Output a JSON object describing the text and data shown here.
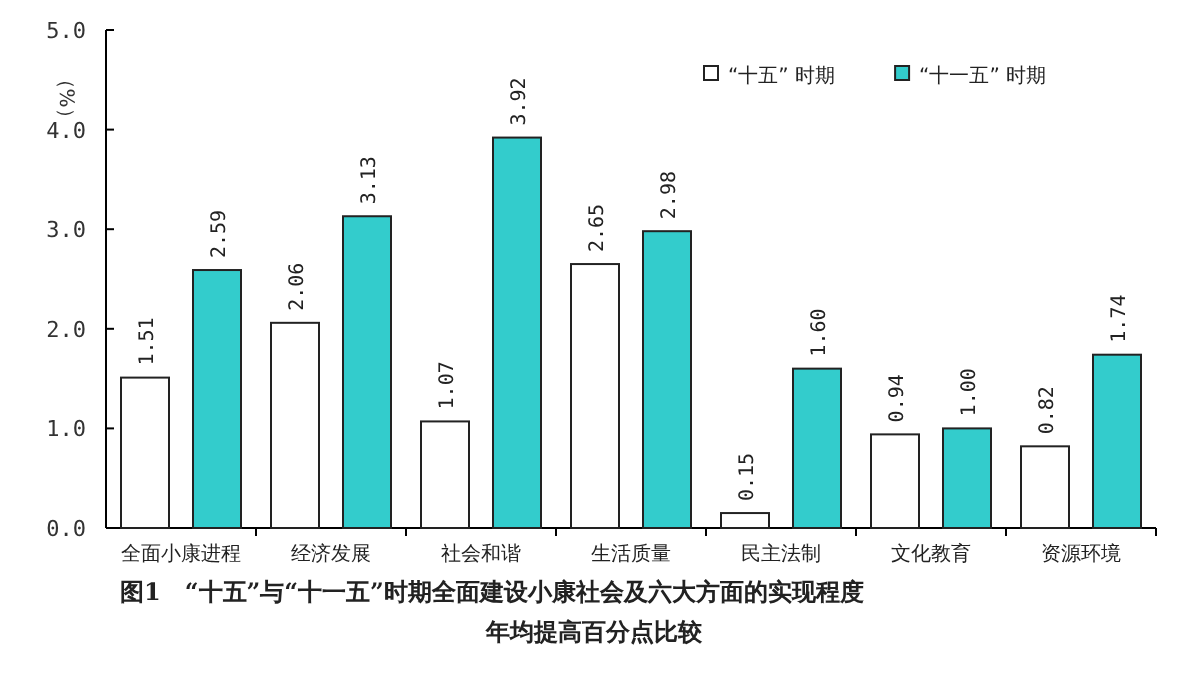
{
  "chart_data": {
    "type": "bar",
    "title": "图1　“十五”与“十一五”时期全面建设小康社会及六大方面的实现程度",
    "subtitle": "年均提高百分点比较",
    "ylabel": "（%）",
    "categories": [
      "全面小康进程",
      "经济发展",
      "社会和谐",
      "生活质量",
      "民主法制",
      "文化教育",
      "资源环境"
    ],
    "series": [
      {
        "name": "“十五” 时期",
        "color": "#ffffff",
        "values": [
          1.51,
          2.06,
          1.07,
          2.65,
          0.15,
          0.94,
          0.82
        ],
        "value_labels": [
          "1.51",
          "2.06",
          "1.07",
          "2.65",
          "0.15",
          "0.94",
          "0.82"
        ]
      },
      {
        "name": "“十一五” 时期",
        "color": "#33cccc",
        "values": [
          2.59,
          3.13,
          3.92,
          2.98,
          1.6,
          1.0,
          1.74
        ],
        "value_labels": [
          "2.59",
          "3.13",
          "3.92",
          "2.98",
          "1.60",
          "1.00",
          "1.74"
        ]
      }
    ],
    "ylim": [
      0,
      5
    ],
    "yticks": [
      {
        "value": 0,
        "label": "0.0"
      },
      {
        "value": 1,
        "label": "1.0"
      },
      {
        "value": 2,
        "label": "2.0"
      },
      {
        "value": 3,
        "label": "3.0"
      },
      {
        "value": 4,
        "label": "4.0"
      },
      {
        "value": 5,
        "label": "5.0"
      }
    ],
    "legend": "top right",
    "grid": false
  }
}
